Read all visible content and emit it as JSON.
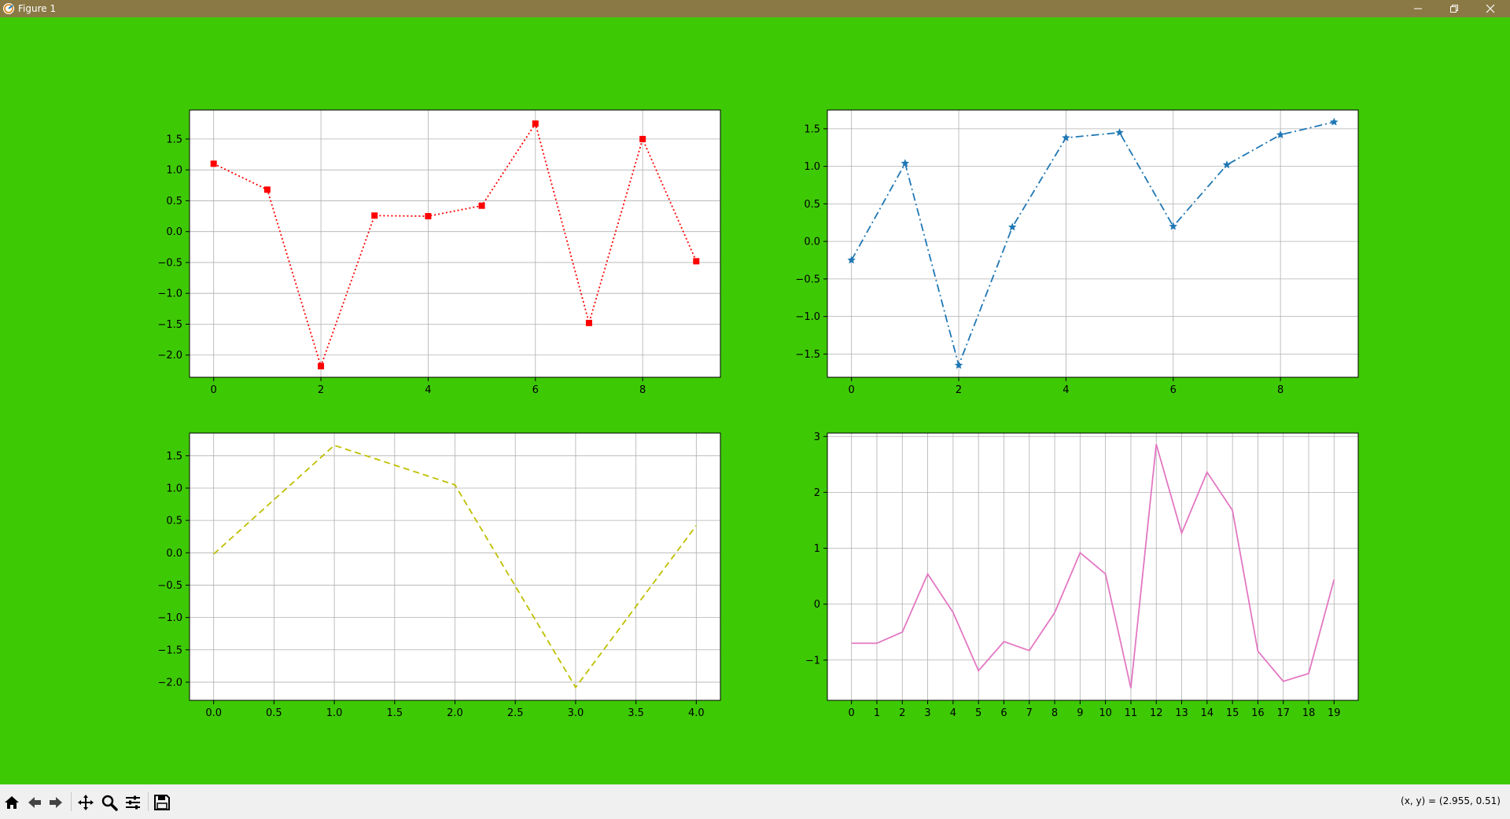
{
  "window": {
    "title": "Figure 1"
  },
  "statusbar": {
    "coords": "(x, y) = (2.955, 0.51)"
  },
  "toolbar": {
    "icons": [
      "home-icon",
      "back-icon",
      "forward-icon",
      "pan-icon",
      "zoom-icon",
      "configure-subplots-icon",
      "save-icon"
    ]
  },
  "colors": {
    "background": "#3ec905",
    "titlebar": "#8a7945"
  },
  "chart_data": [
    {
      "type": "line",
      "title": "",
      "xlabel": "",
      "ylabel": "",
      "x": [
        0,
        1,
        2,
        3,
        4,
        5,
        6,
        7,
        8,
        9
      ],
      "series": [
        {
          "values": [
            1.1,
            0.68,
            -2.18,
            0.26,
            0.25,
            0.42,
            1.75,
            -1.48,
            1.5,
            -0.48
          ],
          "color": "#ff0000",
          "linestyle": "dotted",
          "marker": "square"
        }
      ],
      "xlim": [
        -0.45,
        9.45
      ],
      "ylim": [
        -2.36,
        1.97
      ],
      "xticks": [
        0,
        2,
        4,
        6,
        8
      ],
      "xtick_labels": [
        "0",
        "2",
        "4",
        "6",
        "8"
      ],
      "yticks": [
        -2.0,
        -1.5,
        -1.0,
        -0.5,
        0.0,
        0.5,
        1.0,
        1.5
      ],
      "ytick_labels": [
        "−2.0",
        "−1.5",
        "−1.0",
        "−0.5",
        "0.0",
        "0.5",
        "1.0",
        "1.5"
      ],
      "grid": true
    },
    {
      "type": "line",
      "title": "",
      "xlabel": "",
      "ylabel": "",
      "x": [
        0,
        1,
        2,
        3,
        4,
        5,
        6,
        7,
        8,
        9
      ],
      "series": [
        {
          "values": [
            -0.25,
            1.04,
            -1.65,
            0.19,
            1.38,
            1.45,
            0.2,
            1.02,
            1.42,
            1.59
          ],
          "color": "#1f77b4",
          "linestyle": "dashdot",
          "marker": "star"
        }
      ],
      "xlim": [
        -0.45,
        9.45
      ],
      "ylim": [
        -1.81,
        1.75
      ],
      "xticks": [
        0,
        2,
        4,
        6,
        8
      ],
      "xtick_labels": [
        "0",
        "2",
        "4",
        "6",
        "8"
      ],
      "yticks": [
        -1.5,
        -1.0,
        -0.5,
        0.0,
        0.5,
        1.0,
        1.5
      ],
      "ytick_labels": [
        "−1.5",
        "−1.0",
        "−0.5",
        "0.0",
        "0.5",
        "1.0",
        "1.5"
      ],
      "grid": true
    },
    {
      "type": "line",
      "title": "",
      "xlabel": "",
      "ylabel": "",
      "x": [
        0,
        1,
        2,
        3,
        4
      ],
      "series": [
        {
          "values": [
            -0.02,
            1.66,
            1.05,
            -2.08,
            0.42
          ],
          "color": "#bfbf00",
          "linestyle": "dashed",
          "marker": "none"
        }
      ],
      "xlim": [
        -0.2,
        4.2
      ],
      "ylim": [
        -2.28,
        1.85
      ],
      "xticks": [
        0,
        0.5,
        1,
        1.5,
        2,
        2.5,
        3,
        3.5,
        4
      ],
      "xtick_labels": [
        "0.0",
        "0.5",
        "1.0",
        "1.5",
        "2.0",
        "2.5",
        "3.0",
        "3.5",
        "4.0"
      ],
      "yticks": [
        -2.0,
        -1.5,
        -1.0,
        -0.5,
        0.0,
        0.5,
        1.0,
        1.5
      ],
      "ytick_labels": [
        "−2.0",
        "−1.5",
        "−1.0",
        "−0.5",
        "0.0",
        "0.5",
        "1.0",
        "1.5"
      ],
      "grid": true
    },
    {
      "type": "line",
      "title": "",
      "xlabel": "",
      "ylabel": "",
      "x": [
        0,
        1,
        2,
        3,
        4,
        5,
        6,
        7,
        8,
        9,
        10,
        11,
        12,
        13,
        14,
        15,
        16,
        17,
        18,
        19
      ],
      "series": [
        {
          "values": [
            -0.7,
            -0.7,
            -0.5,
            0.54,
            -0.15,
            -1.19,
            -0.67,
            -0.83,
            -0.15,
            0.92,
            0.54,
            -1.5,
            2.86,
            1.27,
            2.36,
            1.68,
            -0.84,
            -1.38,
            -1.24,
            0.44
          ],
          "color": "#e377c2",
          "linestyle": "solid",
          "marker": "none"
        }
      ],
      "xlim": [
        -0.95,
        19.95
      ],
      "ylim": [
        -1.72,
        3.06
      ],
      "xticks": [
        0,
        1,
        2,
        3,
        4,
        5,
        6,
        7,
        8,
        9,
        10,
        11,
        12,
        13,
        14,
        15,
        16,
        17,
        18,
        19
      ],
      "xtick_labels": [
        "0",
        "1",
        "2",
        "3",
        "4",
        "5",
        "6",
        "7",
        "8",
        "9",
        "10",
        "11",
        "12",
        "13",
        "14",
        "15",
        "16",
        "17",
        "18",
        "19"
      ],
      "yticks": [
        -1,
        0,
        1,
        2,
        3
      ],
      "ytick_labels": [
        "−1",
        "0",
        "1",
        "2",
        "3"
      ],
      "grid": true
    }
  ]
}
